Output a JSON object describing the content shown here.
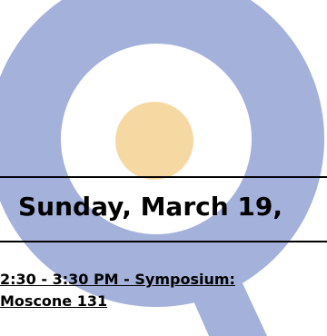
{
  "colors": {
    "watermark_q": "#a4b1da",
    "watermark_dot": "#f6d8a2",
    "text": "#000000",
    "background": "#ffffff"
  },
  "watermark": {
    "icon": "q-logo-icon"
  },
  "day_heading": "Sunday, March 19,",
  "session": {
    "line1": "2:30 - 3:30 PM - Symposium:",
    "line2": "Moscone 131"
  }
}
